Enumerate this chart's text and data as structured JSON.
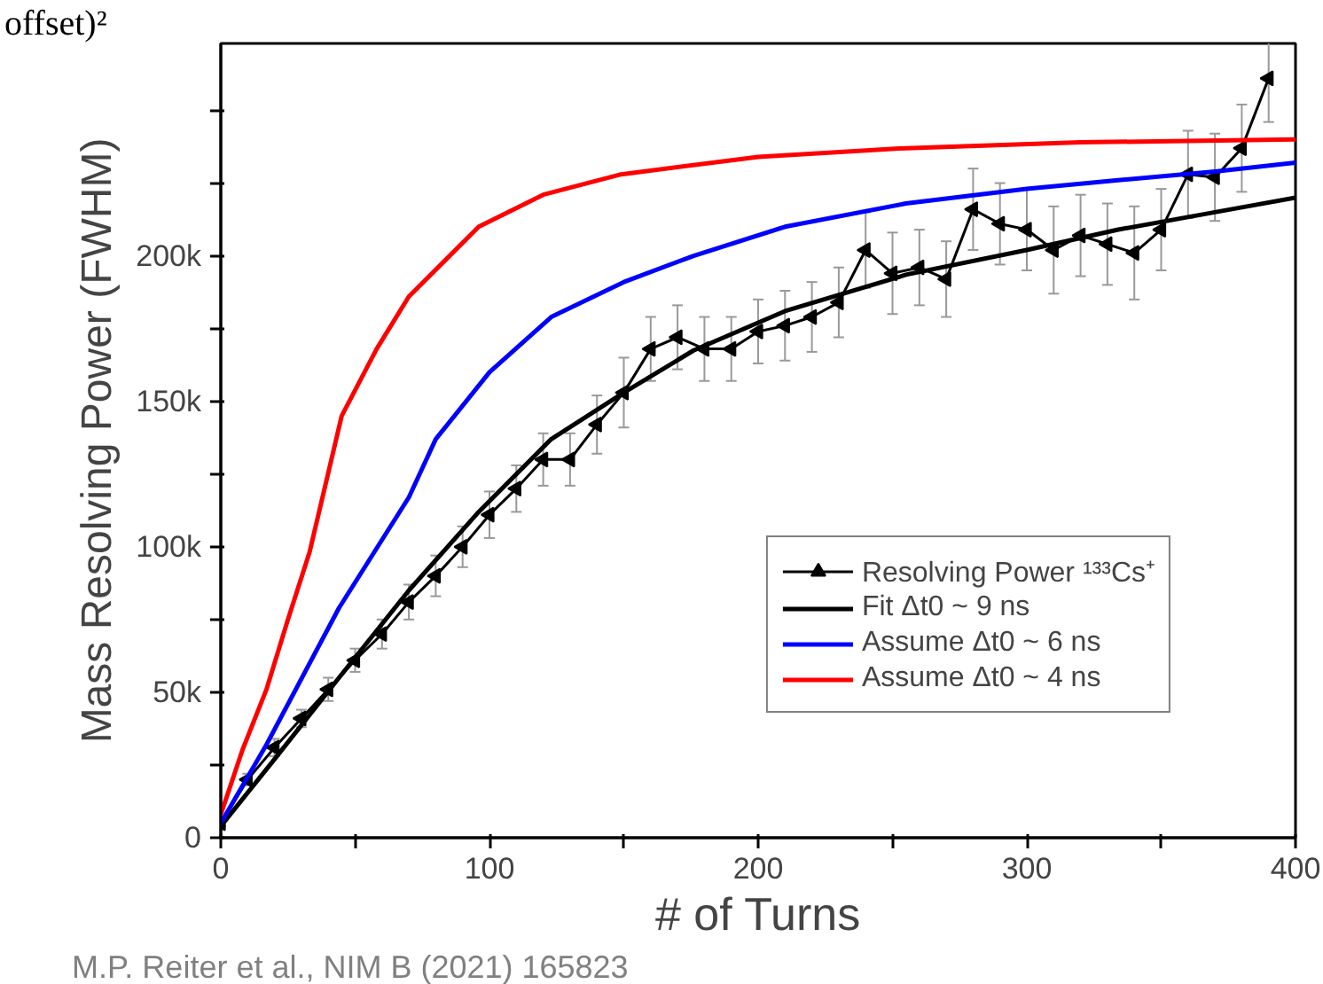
{
  "chart_data": {
    "type": "line",
    "xlabel": "# of Turns",
    "ylabel": "Mass Resolving Power (FWHM)",
    "annotations": [
      "offset)²",
      "M.P. Reiter et al., NIM B (2021) 165823"
    ],
    "xlim": [
      0,
      400
    ],
    "ylim": [
      0,
      273000
    ],
    "xticks": [
      0,
      {
        "value": 50,
        "label": null
      },
      100,
      {
        "value": 150,
        "label": null
      },
      200,
      {
        "value": 250,
        "label": null
      },
      300,
      {
        "value": 350,
        "label": null
      },
      400
    ],
    "yticks": [
      0,
      {
        "value": 25000,
        "label": null
      },
      {
        "value": 50000,
        "label": "50k"
      },
      {
        "value": 75000,
        "label": null
      },
      {
        "value": 100000,
        "label": "100k"
      },
      {
        "value": 125000,
        "label": null
      },
      {
        "value": 150000,
        "label": "150k"
      },
      {
        "value": 175000,
        "label": null
      },
      {
        "value": 200000,
        "label": "200k"
      },
      {
        "value": 225000,
        "label": null
      },
      {
        "value": 250000,
        "label": null
      }
    ],
    "grid": false,
    "legend": "bottom right",
    "series": [
      {
        "name": "Resolving Power ¹³³Cs⁺",
        "marker": "triangle",
        "color": "#000000",
        "x": [
          0,
          10,
          20,
          30,
          40,
          50,
          60,
          70,
          80,
          90,
          100,
          110,
          120,
          130,
          140,
          150,
          160,
          170,
          180,
          190,
          200,
          210,
          220,
          230,
          240,
          250,
          260,
          270,
          280,
          290,
          300,
          310,
          320,
          330,
          340,
          350,
          360,
          370,
          380,
          390
        ],
        "values": [
          5000,
          20000,
          31000,
          41000,
          51000,
          61000,
          70000,
          81000,
          90000,
          100000,
          111000,
          120000,
          130000,
          130000,
          142000,
          153000,
          168000,
          172000,
          168000,
          168000,
          174000,
          176000,
          179000,
          184000,
          202000,
          194000,
          196000,
          192000,
          216000,
          211000,
          209000,
          202000,
          207000,
          204000,
          201000,
          209000,
          228000,
          227000,
          237000,
          261000
        ],
        "errors": [
          1000,
          2000,
          3000,
          3000,
          4000,
          4000,
          5000,
          6000,
          7000,
          7000,
          8000,
          8000,
          9000,
          9000,
          10000,
          12000,
          11000,
          11000,
          11000,
          11000,
          11000,
          12000,
          12000,
          12000,
          13000,
          14000,
          13000,
          13000,
          14000,
          14000,
          14000,
          15000,
          14000,
          14000,
          16000,
          14000,
          15000,
          15000,
          15000,
          15000
        ]
      },
      {
        "name": "Fit Δt0 ~ 9 ns",
        "marker": "none",
        "color": "#000000",
        "x": [
          0,
          20,
          44,
          70,
          96,
          123,
          150,
          176,
          210,
          255,
          300,
          334,
          370,
          400
        ],
        "values": [
          4000,
          27000,
          55000,
          85000,
          112000,
          137000,
          153000,
          167500,
          181000,
          193500,
          202000,
          209000,
          215000,
          220000
        ]
      },
      {
        "name": "Assume Δt0 ~ 6 ns",
        "marker": "none",
        "color": "#0000ff",
        "x": [
          0,
          17,
          44,
          70,
          80,
          100,
          123,
          150,
          176,
          210,
          255,
          300,
          334,
          370,
          400
        ],
        "values": [
          5000,
          32000,
          79000,
          117000,
          137000,
          160000,
          179000,
          191000,
          200000,
          210000,
          218000,
          223000,
          226000,
          229000,
          232000
        ]
      },
      {
        "name": "Assume Δt0 ~ 4 ns",
        "marker": "none",
        "color": "#ff0000",
        "x": [
          0,
          8,
          17,
          25,
          33,
          45,
          58,
          70,
          96,
          120,
          149,
          200,
          255,
          320,
          400
        ],
        "values": [
          8000,
          30000,
          51000,
          75000,
          98000,
          145000,
          168000,
          186000,
          210000,
          221000,
          228000,
          234000,
          237000,
          239000,
          240000
        ]
      }
    ]
  }
}
